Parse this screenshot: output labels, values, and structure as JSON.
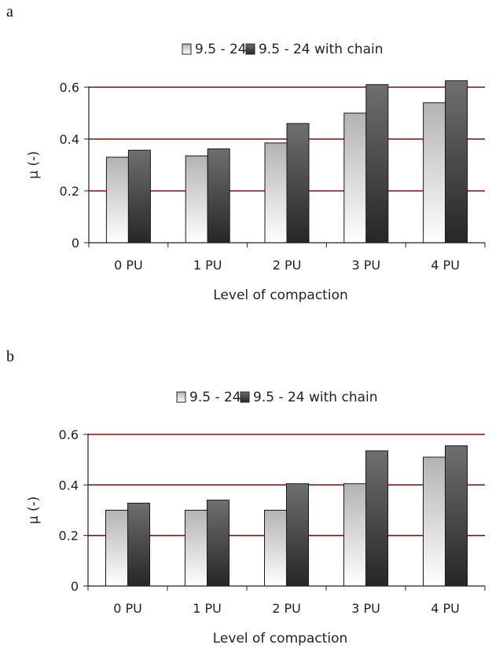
{
  "panels": [
    {
      "letter": "a"
    },
    {
      "letter": "b"
    }
  ],
  "chart_data": [
    {
      "type": "bar",
      "title": "",
      "xlabel": "Level of compaction",
      "ylabel": "μ (-)",
      "categories": [
        "0 PU",
        "1 PU",
        "2 PU",
        "3 PU",
        "4 PU"
      ],
      "series": [
        {
          "name": "9.5 - 24",
          "values": [
            0.33,
            0.335,
            0.385,
            0.5,
            0.54
          ]
        },
        {
          "name": "9.5 - 24 with chain",
          "values": [
            0.357,
            0.362,
            0.46,
            0.61,
            0.625
          ]
        }
      ],
      "ylim": [
        0,
        0.6
      ],
      "yticks": [
        "0",
        "0.2",
        "0.4",
        "0.6"
      ],
      "grid": true,
      "legend": "top"
    },
    {
      "type": "bar",
      "title": "",
      "xlabel": "Level of compaction",
      "ylabel": "μ (-)",
      "categories": [
        "0 PU",
        "1 PU",
        "2 PU",
        "3 PU",
        "4 PU"
      ],
      "series": [
        {
          "name": "9.5 - 24",
          "values": [
            0.3,
            0.3,
            0.3,
            0.405,
            0.51
          ]
        },
        {
          "name": "9.5 - 24 with chain",
          "values": [
            0.328,
            0.34,
            0.405,
            0.535,
            0.555
          ]
        }
      ],
      "ylim": [
        0,
        0.6
      ],
      "yticks": [
        "0",
        "0.2",
        "0.4",
        "0.6"
      ],
      "grid": true,
      "legend": "top"
    }
  ]
}
